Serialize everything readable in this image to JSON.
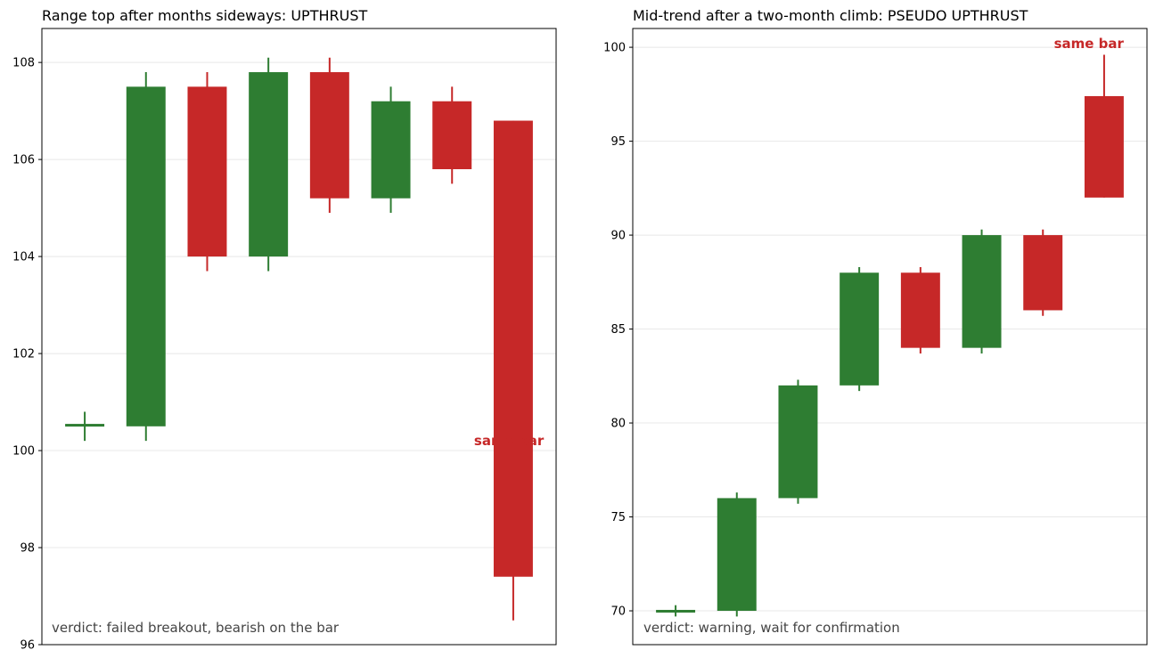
{
  "chart_data": [
    {
      "type": "candlestick",
      "title": "Range top after months sideways: UPTHRUST",
      "xlabel": "",
      "ylabel": "",
      "ylim": [
        96,
        108.7
      ],
      "yticks": [
        96,
        98,
        100,
        102,
        104,
        106,
        108
      ],
      "grid": true,
      "candles": [
        {
          "open": 100.5,
          "high": 100.8,
          "low": 100.2,
          "close": 100.55
        },
        {
          "open": 100.5,
          "high": 107.8,
          "low": 100.2,
          "close": 107.5
        },
        {
          "open": 107.5,
          "high": 107.8,
          "low": 103.7,
          "close": 104.0
        },
        {
          "open": 104.0,
          "high": 108.1,
          "low": 103.7,
          "close": 107.8
        },
        {
          "open": 107.8,
          "high": 108.1,
          "low": 104.9,
          "close": 105.2
        },
        {
          "open": 105.2,
          "high": 107.5,
          "low": 104.9,
          "close": 107.2
        },
        {
          "open": 107.2,
          "high": 107.5,
          "low": 105.5,
          "close": 105.8
        },
        {
          "open": 106.8,
          "high": 106.8,
          "low": 96.5,
          "close": 97.4
        }
      ],
      "annotation": {
        "text": "same bar",
        "candle": 7,
        "y": 100.2
      },
      "verdict": "verdict: failed breakout, bearish on the bar"
    },
    {
      "type": "candlestick",
      "title": "Mid-trend after a two-month climb: PSEUDO UPTHRUST",
      "xlabel": "",
      "ylabel": "",
      "ylim": [
        68.2,
        101.0
      ],
      "yticks": [
        70,
        75,
        80,
        85,
        90,
        95,
        100
      ],
      "grid": true,
      "candles": [
        {
          "open": 70.0,
          "high": 70.3,
          "low": 69.7,
          "close": 70.05
        },
        {
          "open": 70.0,
          "high": 76.3,
          "low": 69.7,
          "close": 76.0
        },
        {
          "open": 76.0,
          "high": 82.3,
          "low": 75.7,
          "close": 82.0
        },
        {
          "open": 82.0,
          "high": 88.3,
          "low": 81.7,
          "close": 88.0
        },
        {
          "open": 88.0,
          "high": 88.3,
          "low": 83.7,
          "close": 84.0
        },
        {
          "open": 84.0,
          "high": 90.3,
          "low": 83.7,
          "close": 90.0
        },
        {
          "open": 90.0,
          "high": 90.3,
          "low": 85.7,
          "close": 86.0
        },
        {
          "open": 97.4,
          "high": 99.6,
          "low": 92.0,
          "close": 92.0
        }
      ],
      "annotation": {
        "text": "same bar",
        "candle": 7,
        "y": 100.2
      },
      "verdict": "verdict: warning, wait for confirmation"
    }
  ],
  "colors": {
    "up": "#2e7d32",
    "down": "#c62828",
    "grid": "#e8e8e8",
    "axis": "#000000",
    "verdict": "#444444"
  }
}
